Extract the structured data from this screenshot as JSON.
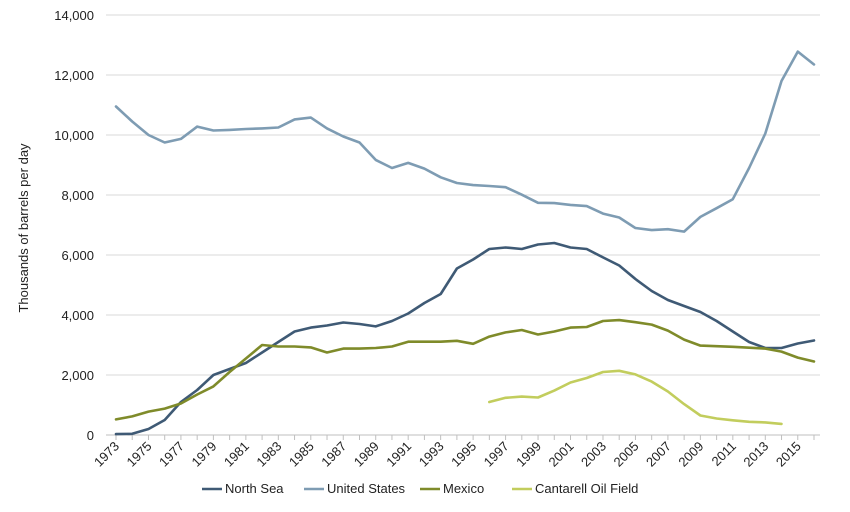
{
  "chart_data": {
    "type": "line",
    "title": "",
    "xlabel": "",
    "ylabel": "Thousands of barrels per day",
    "ylim": [
      0,
      14000
    ],
    "yticks": [
      0,
      2000,
      4000,
      6000,
      8000,
      10000,
      12000,
      14000
    ],
    "ytick_labels": [
      "0",
      "2,000",
      "4,000",
      "6,000",
      "8,000",
      "10,000",
      "12,000",
      "14,000"
    ],
    "xlim": [
      1973,
      2016
    ],
    "xticks": [
      1973,
      1975,
      1977,
      1979,
      1981,
      1983,
      1985,
      1987,
      1989,
      1991,
      1993,
      1995,
      1997,
      1999,
      2001,
      2003,
      2005,
      2007,
      2009,
      2011,
      2013,
      2015
    ],
    "xtick_labels": [
      "1973",
      "1975",
      "1977",
      "1979",
      "1981",
      "1983",
      "1985",
      "1987",
      "1989",
      "1991",
      "1993",
      "1995",
      "1997",
      "1999",
      "2001",
      "2003",
      "2005",
      "2007",
      "2009",
      "2011",
      "2013",
      "2015"
    ],
    "grid": "horizontal",
    "legend_position": "bottom",
    "series": [
      {
        "name": "North Sea",
        "color": "#3f5a75",
        "x": [
          1973,
          1974,
          1975,
          1976,
          1977,
          1978,
          1979,
          1980,
          1981,
          1982,
          1983,
          1984,
          1985,
          1986,
          1987,
          1988,
          1989,
          1990,
          1991,
          1992,
          1993,
          1994,
          1995,
          1996,
          1997,
          1998,
          1999,
          2000,
          2001,
          2002,
          2003,
          2004,
          2005,
          2006,
          2007,
          2008,
          2009,
          2010,
          2011,
          2012,
          2013,
          2014,
          2015,
          2016
        ],
        "values": [
          30,
          40,
          200,
          500,
          1100,
          1500,
          2000,
          2200,
          2400,
          2750,
          3100,
          3450,
          3580,
          3650,
          3750,
          3700,
          3620,
          3800,
          4050,
          4400,
          4700,
          5550,
          5850,
          6200,
          6250,
          6200,
          6350,
          6400,
          6250,
          6200,
          5920,
          5650,
          5200,
          4800,
          4500,
          4300,
          4100,
          3800,
          3450,
          3100,
          2900,
          2900,
          3050,
          3150
        ]
      },
      {
        "name": "United States",
        "color": "#7e9cb3",
        "x": [
          1973,
          1974,
          1975,
          1976,
          1977,
          1978,
          1979,
          1980,
          1981,
          1982,
          1983,
          1984,
          1985,
          1986,
          1987,
          1988,
          1989,
          1990,
          1991,
          1992,
          1993,
          1994,
          1995,
          1996,
          1997,
          1998,
          1999,
          2000,
          2001,
          2002,
          2003,
          2004,
          2005,
          2006,
          2007,
          2008,
          2009,
          2010,
          2011,
          2012,
          2013,
          2014,
          2015,
          2016
        ],
        "values": [
          10950,
          10450,
          10000,
          9750,
          9870,
          10280,
          10150,
          10170,
          10200,
          10220,
          10250,
          10520,
          10580,
          10220,
          9950,
          9750,
          9170,
          8900,
          9070,
          8880,
          8590,
          8400,
          8330,
          8300,
          8260,
          8010,
          7740,
          7730,
          7670,
          7630,
          7380,
          7250,
          6900,
          6830,
          6860,
          6780,
          7270,
          7560,
          7860,
          8900,
          10050,
          11800,
          12780,
          12350
        ]
      },
      {
        "name": "Mexico",
        "color": "#7f8b2a",
        "x": [
          1973,
          1974,
          1975,
          1976,
          1977,
          1978,
          1979,
          1980,
          1981,
          1982,
          1983,
          1984,
          1985,
          1986,
          1987,
          1988,
          1989,
          1990,
          1991,
          1992,
          1993,
          1994,
          1995,
          1996,
          1997,
          1998,
          1999,
          2000,
          2001,
          2002,
          2003,
          2004,
          2005,
          2006,
          2007,
          2008,
          2009,
          2010,
          2011,
          2012,
          2013,
          2014,
          2015,
          2016
        ],
        "values": [
          520,
          620,
          780,
          880,
          1050,
          1350,
          1620,
          2100,
          2550,
          3000,
          2950,
          2950,
          2920,
          2750,
          2880,
          2880,
          2900,
          2950,
          3110,
          3110,
          3110,
          3140,
          3040,
          3280,
          3420,
          3500,
          3350,
          3450,
          3580,
          3600,
          3800,
          3830,
          3760,
          3680,
          3480,
          3180,
          2980,
          2960,
          2940,
          2910,
          2880,
          2780,
          2580,
          2450
        ]
      },
      {
        "name": "Cantarell Oil Field",
        "color": "#c2cd5d",
        "x": [
          1996,
          1997,
          1998,
          1999,
          2000,
          2001,
          2002,
          2003,
          2004,
          2005,
          2006,
          2007,
          2008,
          2009,
          2010,
          2011,
          2012,
          2013,
          2014
        ],
        "values": [
          1100,
          1240,
          1280,
          1250,
          1480,
          1750,
          1900,
          2100,
          2140,
          2020,
          1780,
          1450,
          1030,
          650,
          550,
          490,
          440,
          420,
          370
        ]
      }
    ]
  }
}
